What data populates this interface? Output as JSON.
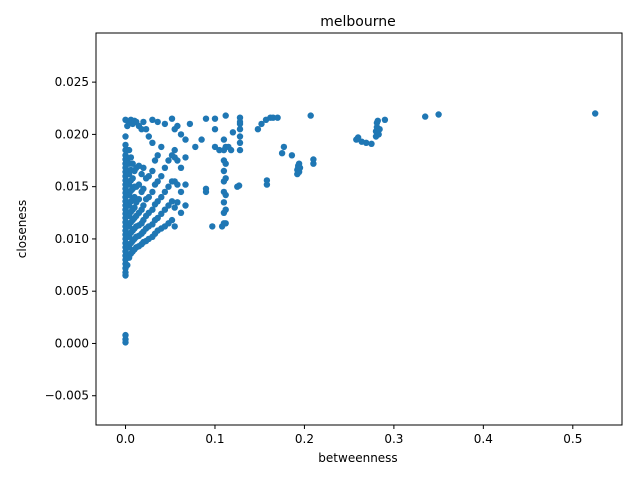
{
  "chart_data": {
    "type": "scatter",
    "title": "melbourne",
    "xlabel": "betweenness",
    "ylabel": "closeness",
    "xlim": [
      -0.033,
      0.555
    ],
    "ylim": [
      -0.0078,
      0.0297
    ],
    "xticks": [
      0.0,
      0.1,
      0.2,
      0.3,
      0.4,
      0.5
    ],
    "xtick_labels": [
      "0.0",
      "0.1",
      "0.2",
      "0.3",
      "0.4",
      "0.5"
    ],
    "yticks": [
      -0.005,
      0.0,
      0.005,
      0.01,
      0.015,
      0.02,
      0.025
    ],
    "ytick_labels": [
      "−0.005",
      "0.000",
      "0.005",
      "0.010",
      "0.015",
      "0.020",
      "0.025"
    ],
    "grid": false,
    "marker_color": "#1f77b4",
    "series": [
      {
        "x": [
          0,
          0,
          0,
          0,
          0,
          0,
          0,
          0,
          0,
          0,
          0,
          0,
          0,
          0,
          0,
          0,
          0,
          0,
          0,
          0,
          0,
          0,
          0,
          0,
          0,
          0,
          0,
          0,
          0,
          0,
          0,
          0,
          0,
          0,
          0,
          0,
          0,
          0.002,
          0.002,
          0.002,
          0.002,
          0.002,
          0.002,
          0.002,
          0.002,
          0.002,
          0.002,
          0.002,
          0.002,
          0.002,
          0.004,
          0.004,
          0.004,
          0.004,
          0.004,
          0.004,
          0.004,
          0.004,
          0.004,
          0.004,
          0.004,
          0.004,
          0.006,
          0.006,
          0.006,
          0.006,
          0.006,
          0.006,
          0.006,
          0.006,
          0.006,
          0.006,
          0.006,
          0.008,
          0.008,
          0.008,
          0.008,
          0.008,
          0.008,
          0.008,
          0.008,
          0.008,
          0.008,
          0.01,
          0.01,
          0.01,
          0.01,
          0.01,
          0.01,
          0.01,
          0.01,
          0.01,
          0.012,
          0.012,
          0.012,
          0.012,
          0.012,
          0.012,
          0.012,
          0.012,
          0.015,
          0.015,
          0.015,
          0.015,
          0.015,
          0.015,
          0.015,
          0.015,
          0.018,
          0.018,
          0.018,
          0.018,
          0.018,
          0.018,
          0.018,
          0.02,
          0.02,
          0.02,
          0.02,
          0.02,
          0.02,
          0.02,
          0.023,
          0.023,
          0.023,
          0.023,
          0.023,
          0.023,
          0.026,
          0.026,
          0.026,
          0.026,
          0.026,
          0.026,
          0.03,
          0.03,
          0.03,
          0.03,
          0.03,
          0.03,
          0.03,
          0.033,
          0.033,
          0.033,
          0.033,
          0.033,
          0.036,
          0.036,
          0.036,
          0.036,
          0.036,
          0.036,
          0.04,
          0.04,
          0.04,
          0.04,
          0.04,
          0.044,
          0.044,
          0.044,
          0.044,
          0.044,
          0.048,
          0.048,
          0.048,
          0.048,
          0.052,
          0.052,
          0.052,
          0.052,
          0.052,
          0.055,
          0.055,
          0.055,
          0.055,
          0.055,
          0.055,
          0.058,
          0.058,
          0.058,
          0.058,
          0.062,
          0.062,
          0.062,
          0.062,
          0.067,
          0.067,
          0.067,
          0.067,
          0.072,
          0.078,
          0.085,
          0.09,
          0.09,
          0.09,
          0.097,
          0.1,
          0.1,
          0.1,
          0.105,
          0.108,
          0.11,
          0.11,
          0.11,
          0.11,
          0.11,
          0.11,
          0.11,
          0.11,
          0.11,
          0.112,
          0.112,
          0.112,
          0.112,
          0.112,
          0.112,
          0.112,
          0.115,
          0.118,
          0.12,
          0.125,
          0.127,
          0.128,
          0.128,
          0.128,
          0.128,
          0.128,
          0.128,
          0.128,
          0.148,
          0.152,
          0.157,
          0.158,
          0.158,
          0.162,
          0.165,
          0.17,
          0.175,
          0.177,
          0.186,
          0.192,
          0.192,
          0.193,
          0.193,
          0.194,
          0.194,
          0.195,
          0.207,
          0.21,
          0.21,
          0.258,
          0.26,
          0.264,
          0.269,
          0.275,
          0.28,
          0.28,
          0.281,
          0.281,
          0.282,
          0.283,
          0.284,
          0.29,
          0.335,
          0.35,
          0.525
        ],
        "y": [
          0.0004,
          0.0008,
          0.0001,
          0.0065,
          0.0068,
          0.0072,
          0.0076,
          0.008,
          0.0084,
          0.0088,
          0.0092,
          0.0096,
          0.01,
          0.0104,
          0.0108,
          0.0112,
          0.0116,
          0.012,
          0.0124,
          0.0128,
          0.0132,
          0.0136,
          0.014,
          0.0144,
          0.0148,
          0.0152,
          0.0156,
          0.016,
          0.0164,
          0.0168,
          0.0172,
          0.0176,
          0.018,
          0.0185,
          0.019,
          0.0198,
          0.0214,
          0.0075,
          0.0085,
          0.0095,
          0.0105,
          0.0115,
          0.0125,
          0.0135,
          0.0145,
          0.0155,
          0.0165,
          0.0175,
          0.0185,
          0.0208,
          0.0082,
          0.0092,
          0.0102,
          0.0112,
          0.0122,
          0.0132,
          0.0142,
          0.0152,
          0.0162,
          0.0172,
          0.0185,
          0.0212,
          0.0086,
          0.0096,
          0.0106,
          0.0116,
          0.0126,
          0.0136,
          0.0146,
          0.0156,
          0.0166,
          0.0178,
          0.0214,
          0.0088,
          0.0098,
          0.0108,
          0.0118,
          0.0128,
          0.0138,
          0.0148,
          0.0158,
          0.0172,
          0.021,
          0.009,
          0.01,
          0.011,
          0.012,
          0.013,
          0.014,
          0.015,
          0.0165,
          0.0213,
          0.0092,
          0.0102,
          0.0112,
          0.0122,
          0.0135,
          0.015,
          0.0168,
          0.0212,
          0.0093,
          0.0103,
          0.0113,
          0.0125,
          0.0138,
          0.0152,
          0.017,
          0.0208,
          0.0095,
          0.0105,
          0.0115,
          0.0128,
          0.0145,
          0.0162,
          0.0205,
          0.0097,
          0.0107,
          0.0118,
          0.0132,
          0.0148,
          0.0168,
          0.0212,
          0.0098,
          0.011,
          0.0122,
          0.0138,
          0.0158,
          0.0205,
          0.01,
          0.0112,
          0.0125,
          0.014,
          0.016,
          0.0198,
          0.0102,
          0.0114,
          0.0128,
          0.0145,
          0.0165,
          0.0192,
          0.0214,
          0.0105,
          0.0118,
          0.0133,
          0.0152,
          0.0175,
          0.0108,
          0.012,
          0.0136,
          0.0155,
          0.018,
          0.0212,
          0.011,
          0.0124,
          0.014,
          0.016,
          0.0188,
          0.0112,
          0.0128,
          0.0145,
          0.0168,
          0.021,
          0.0115,
          0.0132,
          0.015,
          0.0175,
          0.0118,
          0.0136,
          0.0155,
          0.018,
          0.0215,
          0.0112,
          0.013,
          0.0155,
          0.0185,
          0.0178,
          0.0205,
          0.0135,
          0.0152,
          0.0175,
          0.0208,
          0.0125,
          0.0145,
          0.0168,
          0.02,
          0.0132,
          0.0152,
          0.0178,
          0.0195,
          0.021,
          0.0188,
          0.0195,
          0.0145,
          0.0148,
          0.0215,
          0.0112,
          0.0205,
          0.0215,
          0.0188,
          0.0185,
          0.0112,
          0.0115,
          0.0125,
          0.0135,
          0.0145,
          0.0155,
          0.0165,
          0.0175,
          0.0185,
          0.0195,
          0.0115,
          0.0128,
          0.0142,
          0.0158,
          0.0172,
          0.0188,
          0.0218,
          0.0188,
          0.0185,
          0.0202,
          0.015,
          0.0151,
          0.0185,
          0.0192,
          0.0198,
          0.0205,
          0.021,
          0.0212,
          0.0216,
          0.0205,
          0.021,
          0.0214,
          0.0152,
          0.0156,
          0.0216,
          0.0216,
          0.0216,
          0.0182,
          0.0188,
          0.018,
          0.0162,
          0.0166,
          0.017,
          0.0168,
          0.0164,
          0.0172,
          0.0168,
          0.0218,
          0.0172,
          0.0176,
          0.0195,
          0.0197,
          0.0193,
          0.0192,
          0.0191,
          0.0198,
          0.0203,
          0.0207,
          0.0211,
          0.0213,
          0.02,
          0.0205,
          0.0214,
          0.0217,
          0.0219,
          0.022
        ]
      }
    ]
  }
}
